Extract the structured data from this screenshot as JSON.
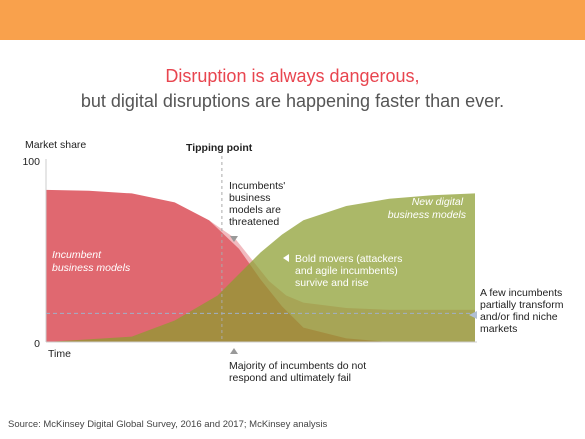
{
  "colors": {
    "banner": "#f9a14c",
    "title_accent": "#e8454f",
    "incumbent": "#e06870",
    "incumbent_light": "#efb3b8",
    "digital": "#8a9d2e",
    "overlap": "#b38258",
    "tipping_line": "#aaaaaa",
    "reference_line": "#9fb0c8"
  },
  "header": {
    "title_line1": "Disruption is always dangerous,",
    "title_line2": "but digital disruptions are happening faster than ever."
  },
  "chart_data": {
    "type": "area",
    "ylabel": "Market share",
    "xlabel": "Time",
    "ylim": [
      0,
      100
    ],
    "y_ticks": [
      "100",
      "0"
    ],
    "x_range": [
      0,
      100
    ],
    "tipping_point": {
      "x": 41,
      "label": "Tipping point"
    },
    "reference_level": 16,
    "series": [
      {
        "name": "Incumbent business models",
        "x": [
          0,
          10,
          20,
          30,
          38,
          45,
          50,
          55,
          60,
          70,
          80,
          100
        ],
        "values": [
          85,
          84.5,
          83,
          78,
          68,
          52,
          35,
          20,
          8,
          2,
          0,
          0
        ]
      },
      {
        "x": [
          38,
          44,
          48,
          52,
          56,
          60,
          70,
          80,
          100
        ],
        "values": [
          68,
          58,
          46,
          34,
          26,
          22,
          19,
          18,
          18
        ]
      },
      {
        "name": "New digital business models",
        "x": [
          0,
          20,
          30,
          40,
          45,
          50,
          55,
          60,
          70,
          80,
          90,
          100
        ],
        "values": [
          0,
          3,
          12,
          26,
          38,
          50,
          60,
          68,
          76,
          80,
          82,
          83
        ]
      }
    ],
    "annotations": [
      {
        "text": [
          "Incumbents'",
          "business",
          "models are",
          "threatened"
        ]
      },
      {
        "text": [
          "Bold movers (attackers",
          "and agile incumbents)",
          "survive and rise"
        ]
      },
      {
        "text": [
          "A few incumbents",
          "partially transform",
          "and/or find niche",
          "markets"
        ]
      },
      {
        "text": [
          "Majority of incumbents do not",
          "respond and ultimately fail"
        ]
      }
    ]
  },
  "footer": {
    "source": "Source: McKinsey Digital Global Survey, 2016 and 2017; McKinsey analysis"
  }
}
